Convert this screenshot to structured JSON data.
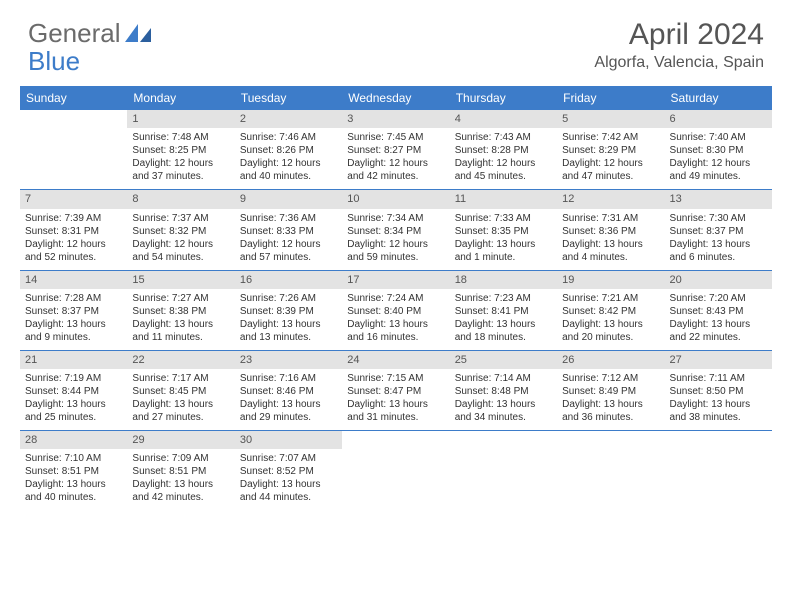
{
  "brand": {
    "part1": "General",
    "part2": "Blue"
  },
  "title": "April 2024",
  "location": "Algorfa, Valencia, Spain",
  "colors": {
    "accent": "#3d7cc9",
    "header_text": "#ffffff",
    "daynum_bg": "#e3e3e3",
    "text": "#333333",
    "muted": "#555555"
  },
  "weekdays": [
    "Sunday",
    "Monday",
    "Tuesday",
    "Wednesday",
    "Thursday",
    "Friday",
    "Saturday"
  ],
  "weeks": [
    [
      {
        "empty": true
      },
      {
        "n": "1",
        "sr": "7:48 AM",
        "ss": "8:25 PM",
        "dl": "12 hours and 37 minutes."
      },
      {
        "n": "2",
        "sr": "7:46 AM",
        "ss": "8:26 PM",
        "dl": "12 hours and 40 minutes."
      },
      {
        "n": "3",
        "sr": "7:45 AM",
        "ss": "8:27 PM",
        "dl": "12 hours and 42 minutes."
      },
      {
        "n": "4",
        "sr": "7:43 AM",
        "ss": "8:28 PM",
        "dl": "12 hours and 45 minutes."
      },
      {
        "n": "5",
        "sr": "7:42 AM",
        "ss": "8:29 PM",
        "dl": "12 hours and 47 minutes."
      },
      {
        "n": "6",
        "sr": "7:40 AM",
        "ss": "8:30 PM",
        "dl": "12 hours and 49 minutes."
      }
    ],
    [
      {
        "n": "7",
        "sr": "7:39 AM",
        "ss": "8:31 PM",
        "dl": "12 hours and 52 minutes."
      },
      {
        "n": "8",
        "sr": "7:37 AM",
        "ss": "8:32 PM",
        "dl": "12 hours and 54 minutes."
      },
      {
        "n": "9",
        "sr": "7:36 AM",
        "ss": "8:33 PM",
        "dl": "12 hours and 57 minutes."
      },
      {
        "n": "10",
        "sr": "7:34 AM",
        "ss": "8:34 PM",
        "dl": "12 hours and 59 minutes."
      },
      {
        "n": "11",
        "sr": "7:33 AM",
        "ss": "8:35 PM",
        "dl": "13 hours and 1 minute."
      },
      {
        "n": "12",
        "sr": "7:31 AM",
        "ss": "8:36 PM",
        "dl": "13 hours and 4 minutes."
      },
      {
        "n": "13",
        "sr": "7:30 AM",
        "ss": "8:37 PM",
        "dl": "13 hours and 6 minutes."
      }
    ],
    [
      {
        "n": "14",
        "sr": "7:28 AM",
        "ss": "8:37 PM",
        "dl": "13 hours and 9 minutes."
      },
      {
        "n": "15",
        "sr": "7:27 AM",
        "ss": "8:38 PM",
        "dl": "13 hours and 11 minutes."
      },
      {
        "n": "16",
        "sr": "7:26 AM",
        "ss": "8:39 PM",
        "dl": "13 hours and 13 minutes."
      },
      {
        "n": "17",
        "sr": "7:24 AM",
        "ss": "8:40 PM",
        "dl": "13 hours and 16 minutes."
      },
      {
        "n": "18",
        "sr": "7:23 AM",
        "ss": "8:41 PM",
        "dl": "13 hours and 18 minutes."
      },
      {
        "n": "19",
        "sr": "7:21 AM",
        "ss": "8:42 PM",
        "dl": "13 hours and 20 minutes."
      },
      {
        "n": "20",
        "sr": "7:20 AM",
        "ss": "8:43 PM",
        "dl": "13 hours and 22 minutes."
      }
    ],
    [
      {
        "n": "21",
        "sr": "7:19 AM",
        "ss": "8:44 PM",
        "dl": "13 hours and 25 minutes."
      },
      {
        "n": "22",
        "sr": "7:17 AM",
        "ss": "8:45 PM",
        "dl": "13 hours and 27 minutes."
      },
      {
        "n": "23",
        "sr": "7:16 AM",
        "ss": "8:46 PM",
        "dl": "13 hours and 29 minutes."
      },
      {
        "n": "24",
        "sr": "7:15 AM",
        "ss": "8:47 PM",
        "dl": "13 hours and 31 minutes."
      },
      {
        "n": "25",
        "sr": "7:14 AM",
        "ss": "8:48 PM",
        "dl": "13 hours and 34 minutes."
      },
      {
        "n": "26",
        "sr": "7:12 AM",
        "ss": "8:49 PM",
        "dl": "13 hours and 36 minutes."
      },
      {
        "n": "27",
        "sr": "7:11 AM",
        "ss": "8:50 PM",
        "dl": "13 hours and 38 minutes."
      }
    ],
    [
      {
        "n": "28",
        "sr": "7:10 AM",
        "ss": "8:51 PM",
        "dl": "13 hours and 40 minutes."
      },
      {
        "n": "29",
        "sr": "7:09 AM",
        "ss": "8:51 PM",
        "dl": "13 hours and 42 minutes."
      },
      {
        "n": "30",
        "sr": "7:07 AM",
        "ss": "8:52 PM",
        "dl": "13 hours and 44 minutes."
      },
      {
        "empty": true,
        "noheader": true
      },
      {
        "empty": true,
        "noheader": true
      },
      {
        "empty": true,
        "noheader": true
      },
      {
        "empty": true,
        "noheader": true
      }
    ]
  ],
  "labels": {
    "sunrise": "Sunrise: ",
    "sunset": "Sunset: ",
    "daylight": "Daylight: "
  }
}
